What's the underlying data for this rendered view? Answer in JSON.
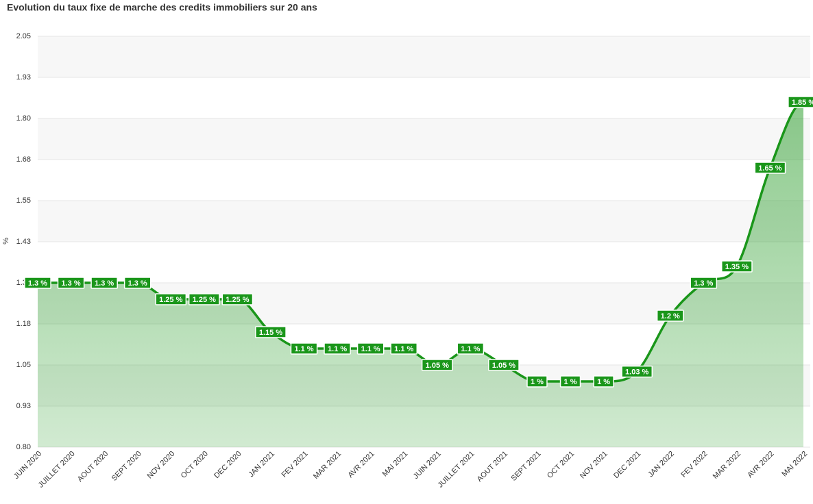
{
  "chart_data": {
    "type": "line",
    "title": "Evolution du taux fixe de marche des credits immobiliers sur 20 ans",
    "y_label": "%",
    "categories": [
      "JUIN 2020",
      "JUILLET 2020",
      "AOUT 2020",
      "SEPT 2020",
      "NOV 2020",
      "OCT 2020",
      "DEC 2020",
      "JAN 2021",
      "FEV 2021",
      "MAR 2021",
      "AVR 2021",
      "MAI 2021",
      "JUIN 2021",
      "JUILLET 2021",
      "AOUT 2021",
      "SEPT 2021",
      "OCT 2021",
      "NOV 2021",
      "DEC 2021",
      "JAN 2022",
      "FEV 2022",
      "MAR 2022",
      "AVR 2022",
      "MAI 2022"
    ],
    "values": [
      1.3,
      1.3,
      1.3,
      1.3,
      1.25,
      1.25,
      1.25,
      1.15,
      1.1,
      1.1,
      1.1,
      1.1,
      1.05,
      1.1,
      1.05,
      1,
      1,
      1,
      1.03,
      1.2,
      1.3,
      1.35,
      1.65,
      1.85
    ],
    "value_labels": [
      "1.3 %",
      "1.3 %",
      "1.3 %",
      "1.3 %",
      "1.25 %",
      "1.25 %",
      "1.25 %",
      "1.15 %",
      "1.1 %",
      "1.1 %",
      "1.1 %",
      "1.1 %",
      "1.05 %",
      "1.1 %",
      "1.05 %",
      "1 %",
      "1 %",
      "1 %",
      "1.03 %",
      "1.2 %",
      "1.3 %",
      "1.35 %",
      "1.65 %",
      "1.85 %"
    ],
    "color": "#1a961a",
    "ylim": [
      0.8,
      2.05
    ],
    "yticks": [
      {
        "value": 0.8,
        "label": "0.80"
      },
      {
        "value": 0.925,
        "label": "0.93"
      },
      1.05,
      {
        "value": 1.175,
        "label": "1.18"
      },
      {
        "value": 1.3,
        "label": "1.30"
      },
      {
        "value": 1.425,
        "label": "1.43"
      },
      1.55,
      {
        "value": 1.675,
        "label": "1.68"
      },
      {
        "value": 1.8,
        "label": "1.80"
      },
      {
        "value": 1.925,
        "label": "1.93"
      },
      2.05
    ],
    "grid": true
  }
}
